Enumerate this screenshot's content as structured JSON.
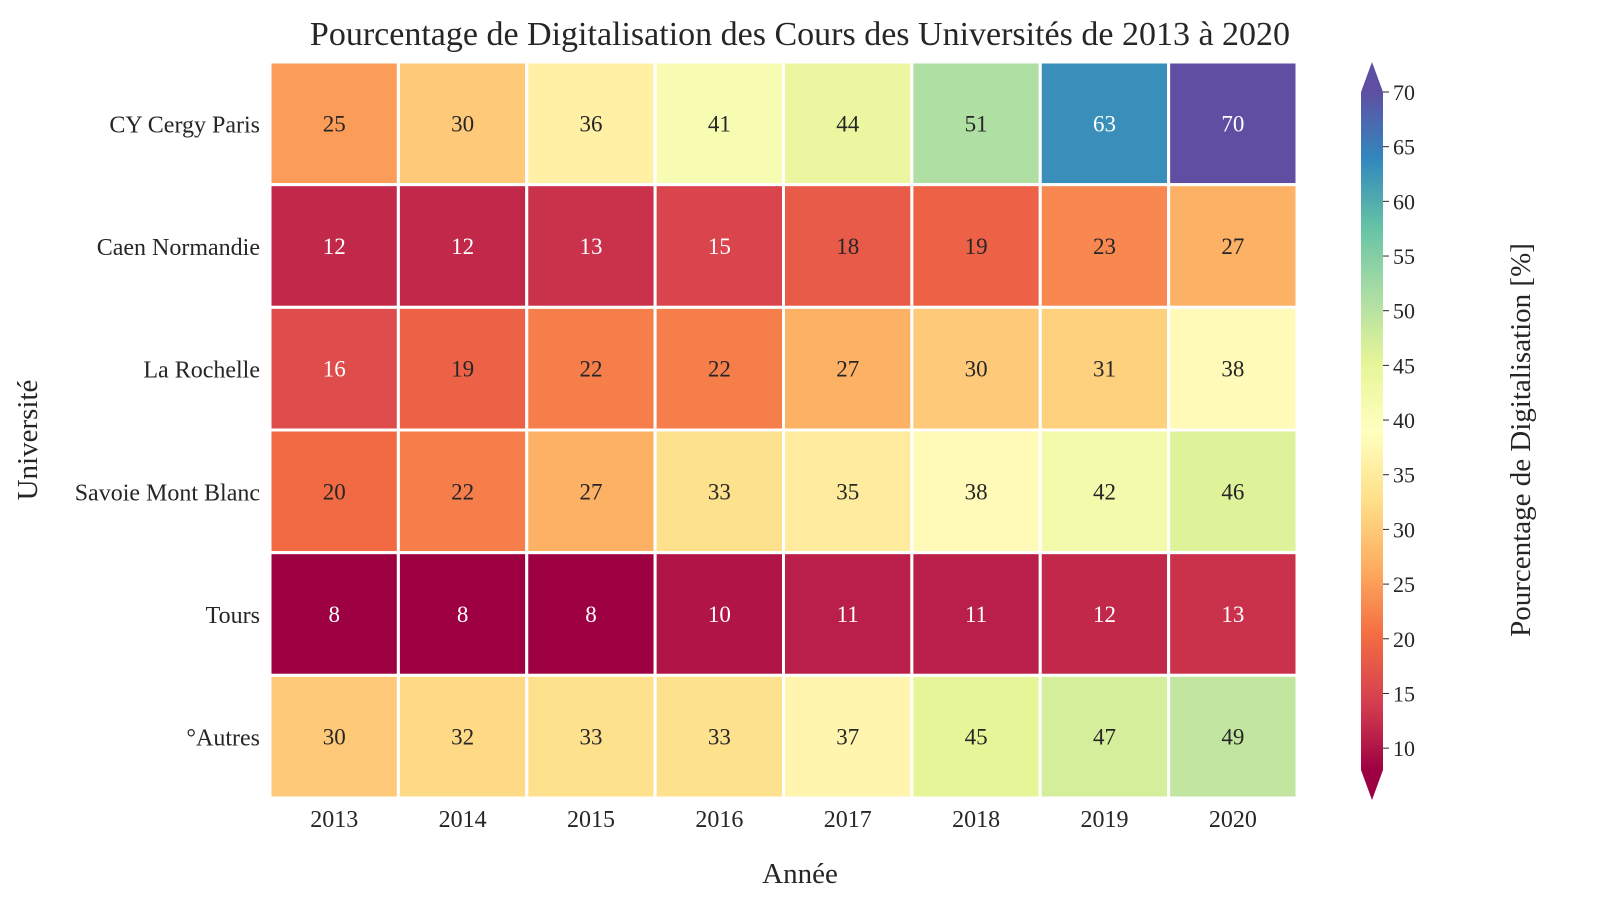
{
  "chart_data": {
    "type": "heatmap",
    "title": "Pourcentage de Digitalisation des Cours des Universités de 2013 à 2020",
    "xlabel": "Année",
    "ylabel": "Université",
    "colorbar_label": "Pourcentage de Digitalisation [%]",
    "x": [
      "2013",
      "2014",
      "2015",
      "2016",
      "2017",
      "2018",
      "2019",
      "2020"
    ],
    "y": [
      "CY Cergy Paris",
      "Caen Normandie",
      "La Rochelle",
      "Savoie Mont Blanc",
      "Tours",
      "°Autres"
    ],
    "values": [
      [
        25,
        30,
        36,
        41,
        44,
        51,
        63,
        70
      ],
      [
        12,
        12,
        13,
        15,
        18,
        19,
        23,
        27
      ],
      [
        16,
        19,
        22,
        22,
        27,
        30,
        31,
        38
      ],
      [
        20,
        22,
        27,
        33,
        35,
        38,
        42,
        46
      ],
      [
        8,
        8,
        8,
        10,
        11,
        11,
        12,
        13
      ],
      [
        30,
        32,
        33,
        33,
        37,
        45,
        47,
        49
      ]
    ],
    "colormap": "Spectral",
    "vmin": 8,
    "vmax": 70,
    "colorbar_ticks": [
      10,
      15,
      20,
      25,
      30,
      35,
      40,
      45,
      50,
      55,
      60,
      65,
      70
    ],
    "colorbar_extend": "both"
  }
}
